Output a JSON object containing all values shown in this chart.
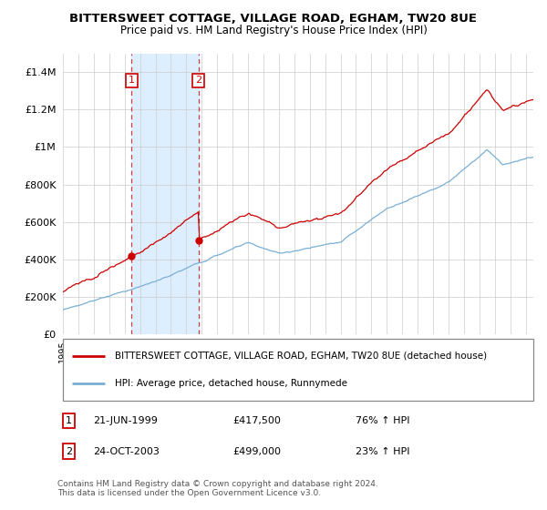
{
  "title": "BITTERSWEET COTTAGE, VILLAGE ROAD, EGHAM, TW20 8UE",
  "subtitle": "Price paid vs. HM Land Registry's House Price Index (HPI)",
  "legend_line1": "BITTERSWEET COTTAGE, VILLAGE ROAD, EGHAM, TW20 8UE (detached house)",
  "legend_line2": "HPI: Average price, detached house, Runnymede",
  "red_color": "#cc0000",
  "blue_color": "#7aafd4",
  "shaded_color": "#ddeeff",
  "purchase1_date": "21-JUN-1999",
  "purchase1_price": 417500,
  "purchase2_date": "24-OCT-2003",
  "purchase2_price": 499000,
  "purchase1_hpi": "76% ↑ HPI",
  "purchase2_hpi": "23% ↑ HPI",
  "footer": "Contains HM Land Registry data © Crown copyright and database right 2024.\nThis data is licensed under the Open Government Licence v3.0.",
  "ylim": [
    0,
    1500000
  ],
  "yticks": [
    0,
    200000,
    400000,
    600000,
    800000,
    1000000,
    1200000,
    1400000
  ],
  "ytick_labels": [
    "£0",
    "£200K",
    "£400K",
    "£600K",
    "£800K",
    "£1M",
    "£1.2M",
    "£1.4M"
  ],
  "x_start_year": 1995.0,
  "x_end_year": 2025.5
}
